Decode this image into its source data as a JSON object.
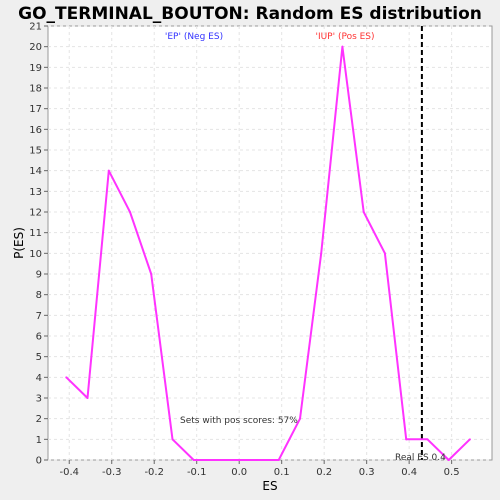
{
  "chart_data": {
    "type": "line",
    "title": "GO_TERMINAL_BOUTON: Random ES distribution",
    "xlabel": "ES",
    "ylabel": "P(ES)",
    "xlim": [
      -0.45,
      0.595
    ],
    "ylim": [
      0,
      21
    ],
    "x_ticks": [
      "-0.4",
      "-0.3",
      "-0.2",
      "-0.1",
      "0.0",
      "0.1",
      "0.2",
      "0.3",
      "0.4",
      "0.5"
    ],
    "y_ticks": [
      "0",
      "1",
      "2",
      "3",
      "4",
      "5",
      "6",
      "7",
      "8",
      "9",
      "10",
      "11",
      "12",
      "13",
      "14",
      "15",
      "16",
      "17",
      "18",
      "19",
      "20",
      "21"
    ],
    "grid": true,
    "series": [
      {
        "color": "#ff33ff",
        "x": [
          -0.407,
          -0.357,
          -0.307,
          -0.257,
          -0.207,
          -0.157,
          -0.107,
          -0.057,
          -0.007,
          0.043,
          0.093,
          0.143,
          0.193,
          0.243,
          0.293,
          0.343,
          0.393,
          0.443,
          0.493,
          0.543
        ],
        "y": [
          4,
          3,
          14,
          12,
          9,
          1,
          0,
          0,
          0,
          0,
          0,
          2,
          10,
          20,
          12,
          10,
          1,
          1,
          0,
          1
        ]
      }
    ],
    "real_es": 0.43,
    "annotations": {
      "neg": "'EP' (Neg ES)",
      "pos": "'IUP' (Pos ES)",
      "sets": "Sets with pos scores: 57%",
      "real_es": "Real ES 0.4"
    },
    "colors": {
      "neg": "#3333ff",
      "pos": "#ff3333",
      "line": "#ff33ff",
      "real_es_line": "#000000"
    }
  }
}
